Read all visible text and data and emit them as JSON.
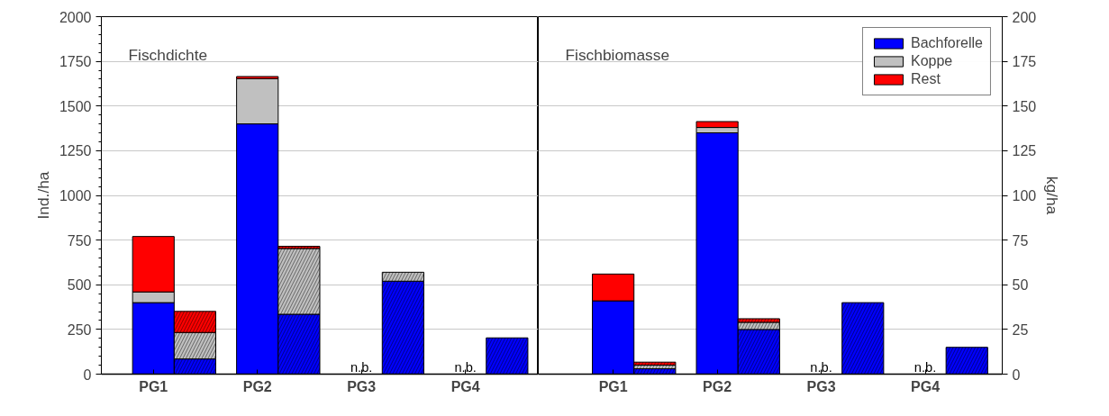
{
  "chart_data": [
    {
      "type": "bar",
      "title": "Fischdichte",
      "ylabel": "Ind./ha",
      "stacked": true,
      "categories": [
        "PG1",
        null,
        "PG2",
        null,
        "PG3",
        null,
        "PG4",
        null
      ],
      "ylim": [
        0,
        2000
      ],
      "yticks": [
        0,
        250,
        500,
        750,
        1000,
        1250,
        1500,
        1750,
        2000
      ],
      "grid": "y",
      "legend": false,
      "series": [
        {
          "color": "#0000ff",
          "values": [
            400,
            85,
            1400,
            335,
            null,
            520,
            null,
            203
          ]
        },
        {
          "color": "#c0c0c0",
          "values": [
            60,
            148,
            253,
            368,
            null,
            50,
            null,
            null
          ]
        },
        {
          "color": "#ff0000",
          "values": [
            310,
            118,
            12,
            12,
            null,
            null,
            null,
            null
          ]
        }
      ],
      "annotations": [
        "n.b.",
        "n.b."
      ]
    },
    {
      "type": "bar",
      "title": "Fischbiomasse",
      "ylabel": "kg/ha",
      "stacked": true,
      "categories": [
        "PG1",
        null,
        "PG2",
        null,
        "PG3",
        null,
        "PG4",
        null
      ],
      "ylim": [
        0,
        200
      ],
      "yticks": [
        0,
        25,
        50,
        75,
        100,
        125,
        150,
        175,
        200
      ],
      "grid": "y",
      "legend": "top right",
      "series": [
        {
          "name": "Bachforelle",
          "color": "#0000ff",
          "values": [
            41,
            3,
            135,
            25,
            null,
            40,
            null,
            15
          ]
        },
        {
          "name": "Koppe",
          "color": "#c0c0c0",
          "values": [
            null,
            2,
            3,
            4,
            null,
            null,
            null,
            null
          ]
        },
        {
          "name": "Rest",
          "color": "#ff0000",
          "values": [
            15,
            1.7,
            3.3,
            2,
            null,
            null,
            null,
            null
          ]
        }
      ],
      "annotations": [
        "n.b.",
        "n.b."
      ]
    }
  ]
}
